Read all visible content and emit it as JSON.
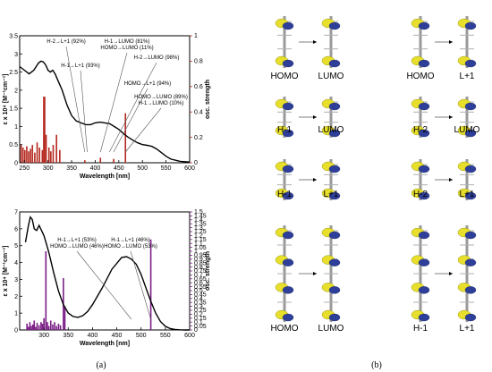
{
  "panel_labels": [
    "(a)",
    "(b)"
  ],
  "colors": {
    "spectrum": "#000000",
    "top_bars": "#b5281e",
    "bottom_bars": "#7b1e86",
    "arrow": "#555555"
  },
  "chart_data": [
    {
      "type": "line",
      "xlabel": "Wavelength [nm]",
      "ylabel": "ε x 10⁴ [M⁻¹cm⁻¹]",
      "y2label": "osc. strength",
      "xlim": [
        240,
        600
      ],
      "ylim": [
        0,
        3.5
      ],
      "y2lim": [
        0,
        1
      ],
      "xticks": [
        250,
        300,
        350,
        400,
        450,
        500,
        550,
        600
      ],
      "yticks": [
        0,
        0.5,
        1,
        1.5,
        2,
        2.5,
        3,
        3.5
      ],
      "y2ticks": [
        0,
        0.2,
        0.4,
        0.6,
        0.8,
        1
      ],
      "series": [
        {
          "x": [
            240,
            250,
            260,
            270,
            280,
            285,
            290,
            295,
            300,
            305,
            310,
            315,
            320,
            330,
            340,
            350,
            360,
            370,
            380,
            390,
            400,
            410,
            420,
            430,
            440,
            450,
            460,
            470,
            480,
            490,
            500,
            510,
            520,
            530,
            540,
            550,
            560,
            580,
            600
          ],
          "values": [
            2.65,
            2.55,
            2.45,
            2.55,
            2.75,
            2.8,
            2.78,
            2.7,
            2.55,
            2.5,
            2.55,
            2.45,
            2.3,
            2.0,
            1.6,
            1.3,
            1.15,
            1.1,
            1.05,
            1.05,
            1.1,
            1.12,
            1.1,
            1.08,
            1.0,
            0.92,
            0.8,
            0.7,
            0.62,
            0.55,
            0.5,
            0.48,
            0.45,
            0.38,
            0.28,
            0.18,
            0.1,
            0.04,
            0.02
          ]
        }
      ],
      "osc_bars": {
        "x": [
          243,
          247,
          251,
          255,
          259,
          263,
          267,
          272,
          277,
          282,
          288,
          292,
          296,
          302,
          306,
          311,
          318,
          325,
          378,
          411,
          439,
          464
        ],
        "values": [
          0.14,
          0.12,
          0.1,
          0.13,
          0.09,
          0.11,
          0.14,
          0.08,
          0.16,
          0.12,
          0.1,
          0.52,
          0.22,
          0.12,
          0.09,
          0.14,
          0.22,
          0.1,
          0.02,
          0.04,
          0.03,
          0.39
        ]
      },
      "annotations": [
        {
          "text": [
            "H-2→L+1 (92%)"
          ],
          "target_x": 378
        },
        {
          "text": [
            "H-1→LUMO (81%)",
            "HOMO→LUMO (11%)"
          ],
          "target_x": 411
        },
        {
          "text": [
            "H-1→L+1 (93%)"
          ],
          "target_x": 383
        },
        {
          "text": [
            "H-2→LUMO (98%)"
          ],
          "target_x": 430
        },
        {
          "text": [
            "HOMO→L+1 (94%)"
          ],
          "target_x": 439
        },
        {
          "text": [
            "HOMO→LUMO (89%)",
            "H-1→LUMO (10%)"
          ],
          "target_x": 464
        }
      ]
    },
    {
      "type": "line",
      "xlabel": "Wavelength [nm]",
      "ylabel": "ε x 10⁴ [M⁻¹cm⁻¹]",
      "y2label": "osc. strength",
      "xlim": [
        250,
        600
      ],
      "ylim": [
        0,
        7
      ],
      "y2lim": [
        0,
        1.5
      ],
      "xticks": [
        300,
        350,
        400,
        450,
        500,
        550,
        600
      ],
      "yticks": [
        0,
        1,
        2,
        3,
        4,
        5,
        6,
        7
      ],
      "y2ticks": [
        0,
        0.05,
        0.1,
        0.15,
        0.2,
        0.25,
        0.3,
        0.35,
        0.4,
        0.45,
        0.5,
        0.55,
        0.6,
        0.65,
        0.7,
        0.75,
        0.8,
        0.85,
        0.9,
        0.95,
        1,
        1.05,
        1.1,
        1.15,
        1.2,
        1.25,
        1.3,
        1.35,
        1.4,
        1.45,
        1.5
      ],
      "series": [
        {
          "x": [
            262,
            268,
            272,
            276,
            280,
            285,
            290,
            295,
            300,
            305,
            310,
            320,
            330,
            340,
            350,
            360,
            370,
            380,
            390,
            400,
            420,
            440,
            460,
            470,
            480,
            490,
            500,
            510,
            520,
            530,
            540,
            550,
            560,
            570,
            580,
            590,
            600
          ],
          "values": [
            5.2,
            6.2,
            6.7,
            6.55,
            6.0,
            5.9,
            6.2,
            5.9,
            5.6,
            5.1,
            4.6,
            3.4,
            2.3,
            1.5,
            1.0,
            0.8,
            0.75,
            0.85,
            1.1,
            1.5,
            2.5,
            3.6,
            4.3,
            4.35,
            4.2,
            3.9,
            3.3,
            2.5,
            1.7,
            1.0,
            0.5,
            0.22,
            0.08,
            0.03,
            0.01,
            0.0,
            0.0
          ]
        }
      ],
      "osc_bars": {
        "x": [
          265,
          268,
          271,
          274,
          277,
          280,
          283,
          286,
          290,
          294,
          297,
          300,
          304,
          307,
          310,
          314,
          318,
          322,
          326,
          330,
          334,
          340,
          343,
          520
        ],
        "values": [
          0.08,
          0.04,
          0.1,
          0.05,
          0.07,
          0.12,
          0.04,
          0.09,
          0.06,
          0.1,
          0.08,
          0.15,
          1.0,
          0.1,
          0.05,
          0.12,
          0.07,
          0.1,
          0.05,
          0.08,
          0.06,
          0.66,
          0.3,
          1.15
        ]
      },
      "annotations": [
        {
          "text": [
            "H-1→L+1 (53%)",
            "HOMO→LUMO (46%)"
          ],
          "target_x": 480
        },
        {
          "text": [
            "H-1→L+1 (46%)",
            "HOMO→LUMO (53%)"
          ],
          "target_x": 520
        }
      ]
    }
  ],
  "orbital_pairs": [
    {
      "from": "HOMO",
      "to": "LUMO"
    },
    {
      "from": "HOMO",
      "to": "L+1"
    },
    {
      "from": "H-1",
      "to": "LUMO"
    },
    {
      "from": "H-2",
      "to": "LUMO"
    },
    {
      "from": "H-1",
      "to": "L+1"
    },
    {
      "from": "H-2",
      "to": "L+1"
    },
    {
      "from": "HOMO",
      "to": "LUMO"
    },
    {
      "from": "H-1",
      "to": "L+1"
    }
  ]
}
